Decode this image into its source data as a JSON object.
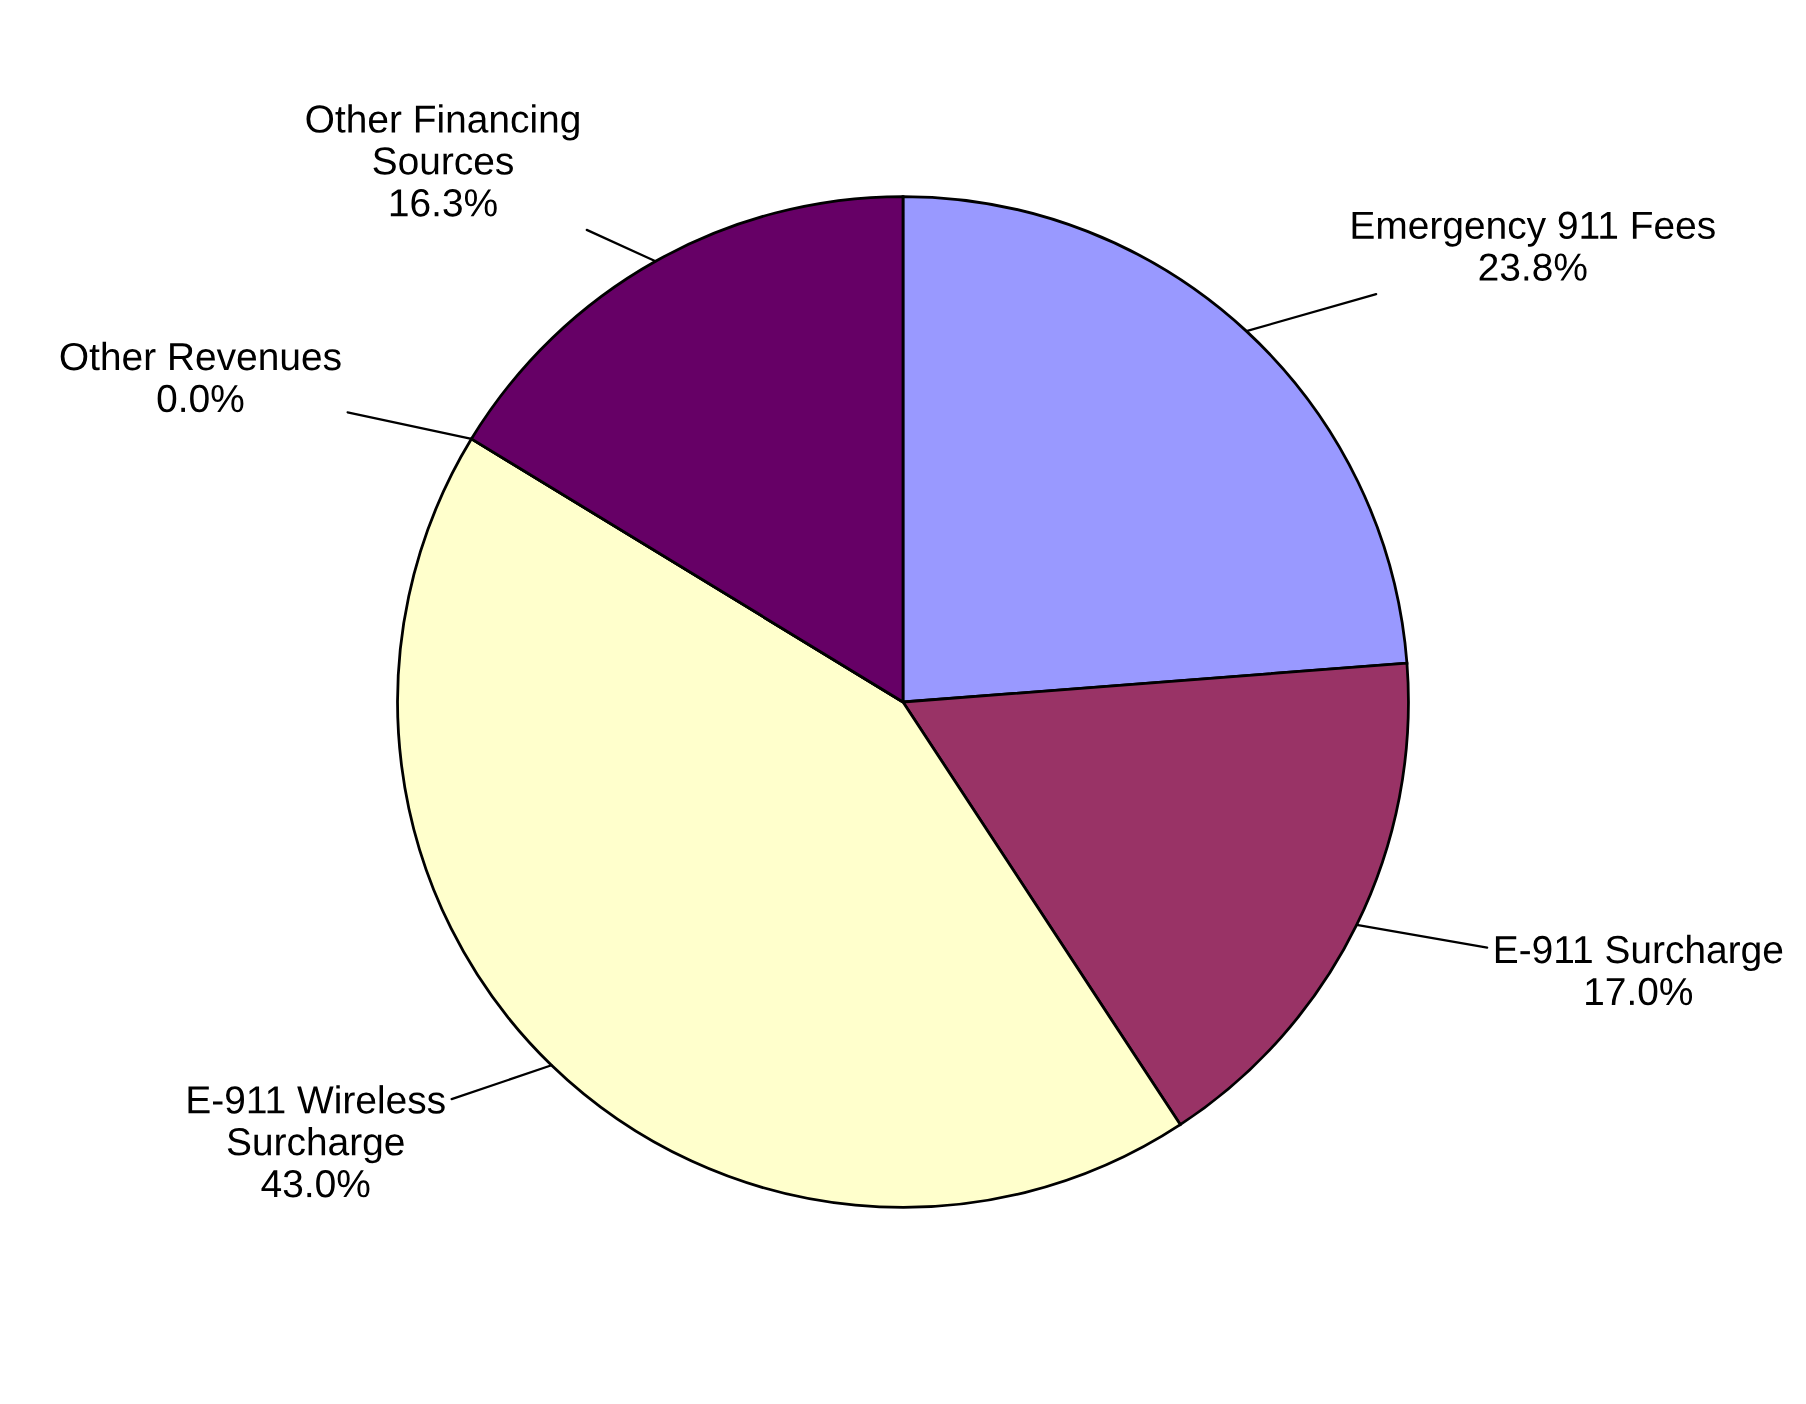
{
  "chart_data": {
    "type": "pie",
    "categories": [
      "Emergency 911 Fees",
      "E-911 Surcharge",
      "E-911 Wireless\nSurcharge",
      "Other Revenues",
      "Other Financing\nSources"
    ],
    "values": [
      23.8,
      17.0,
      43.0,
      0.0,
      16.3
    ],
    "value_labels": [
      "23.8%",
      "17.0%",
      "43.0%",
      "0.0%",
      "16.3%"
    ],
    "colors": [
      "#9999ff",
      "#993366",
      "#ffffcc",
      "#ccffff",
      "#660066"
    ]
  }
}
